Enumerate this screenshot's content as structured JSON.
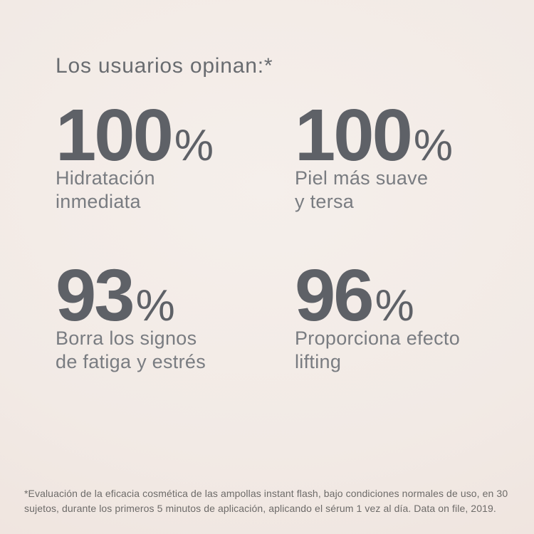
{
  "page": {
    "title": "Los usuarios opinan:*",
    "background_color": "#f2eae5",
    "number_color": "#5e6167",
    "label_color": "#797c81"
  },
  "stats": [
    {
      "value": "100",
      "unit": "%",
      "label": "Hidratación\ninmediata"
    },
    {
      "value": "100",
      "unit": "%",
      "label": "Piel más suave\ny tersa"
    },
    {
      "value": "93",
      "unit": "%",
      "label": "Borra los signos\nde fatiga y estrés"
    },
    {
      "value": "96",
      "unit": "%",
      "label": "Proporciona efecto\nlifting"
    }
  ],
  "footnote": "*Evaluación de la eficacia cosmética de las ampollas instant flash, bajo condiciones normales de uso, en 30\nsujetos, durante los primeros 5 minutos de aplicación, aplicando el sérum 1 vez al día. Data on file, 2019.",
  "chart_data": {
    "type": "table",
    "title": "Los usuarios opinan:*",
    "categories": [
      "Hidratación inmediata",
      "Piel más suave y tersa",
      "Borra los signos de fatiga y estrés",
      "Proporciona efecto lifting"
    ],
    "values": [
      100,
      100,
      93,
      96
    ],
    "unit": "%",
    "source_note": "Data on file, 2019"
  }
}
